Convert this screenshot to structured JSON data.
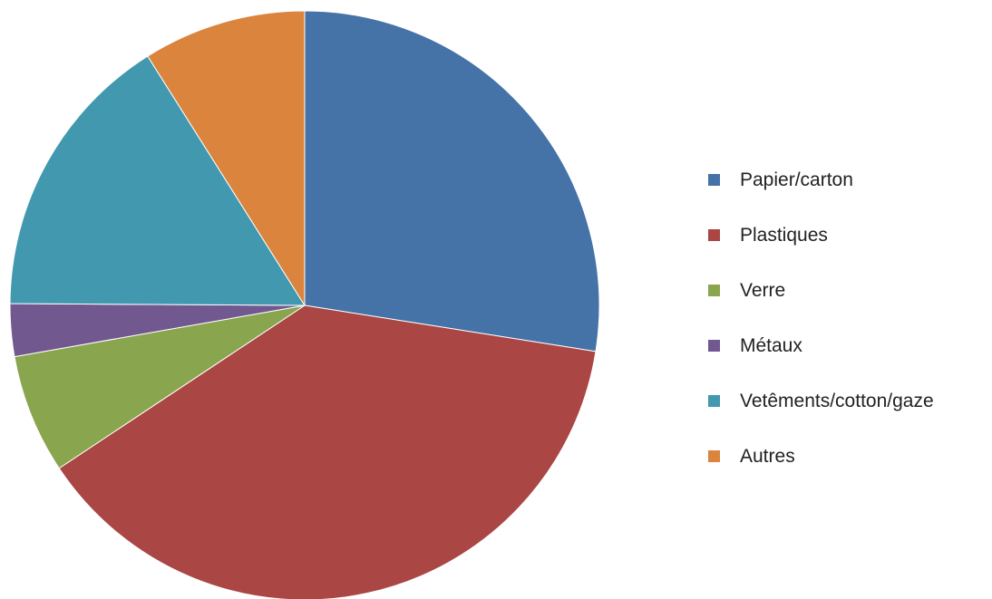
{
  "chart_data": {
    "type": "pie",
    "title": "",
    "legend_position": "right",
    "slices": [
      {
        "label": "Papier/carton",
        "value": 28.6,
        "color": "#4572A7"
      },
      {
        "label": "Plastiques",
        "value": 39.7,
        "color": "#AA4643"
      },
      {
        "label": "Verre",
        "value": 6.8,
        "color": "#89A54E"
      },
      {
        "label": "Métaux",
        "value": 3.0,
        "color": "#71588F"
      },
      {
        "label": "Vetêments/cotton/gaze",
        "value": 16.6,
        "color": "#4198AF"
      },
      {
        "label": "Autres",
        "value": 9.3,
        "color": "#DB843D"
      }
    ],
    "legend": {
      "items": [
        {
          "label": "Papier/carton",
          "color": "#4572A7"
        },
        {
          "label": "Plastiques",
          "color": "#AA4643"
        },
        {
          "label": "Verre",
          "color": "#89A54E"
        },
        {
          "label": "Métaux",
          "color": "#71588F"
        },
        {
          "label": "Vetêments/cotton/gaze",
          "color": "#4198AF"
        },
        {
          "label": "Autres",
          "color": "#DB843D"
        }
      ]
    }
  }
}
